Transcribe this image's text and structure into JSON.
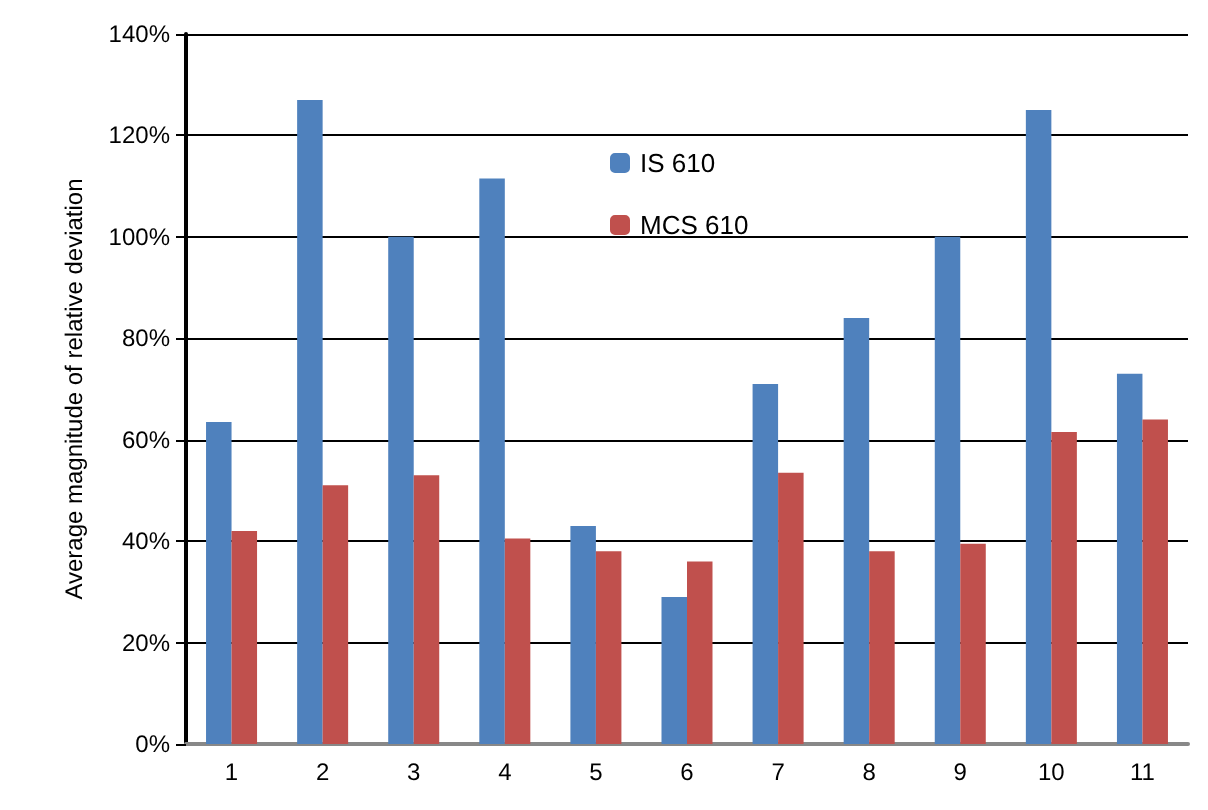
{
  "chart_data": {
    "type": "bar",
    "ylabel": "Average magnitude of relative deviation",
    "categories": [
      "1",
      "2",
      "3",
      "4",
      "5",
      "6",
      "7",
      "8",
      "9",
      "10",
      "11"
    ],
    "series": [
      {
        "name": "IS 610",
        "color": "#4f81bd",
        "values": [
          63.5,
          127,
          100,
          111.5,
          43,
          29,
          71,
          84,
          100,
          125,
          73
        ]
      },
      {
        "name": "MCS 610",
        "color": "#c0504d",
        "values": [
          42,
          51,
          53,
          40.5,
          38,
          36,
          53.5,
          38,
          39.5,
          61.5,
          64
        ]
      }
    ],
    "ylim": [
      0,
      140
    ],
    "yticks": [
      {
        "value": 0,
        "label": "0%"
      },
      {
        "value": 20,
        "label": "20%"
      },
      {
        "value": 40,
        "label": "40%"
      },
      {
        "value": 60,
        "label": "60%"
      },
      {
        "value": 80,
        "label": "80%"
      },
      {
        "value": 100,
        "label": "100%"
      },
      {
        "value": 120,
        "label": "120%"
      },
      {
        "value": 140,
        "label": "140%"
      }
    ],
    "grid": "y",
    "legend": "top"
  }
}
